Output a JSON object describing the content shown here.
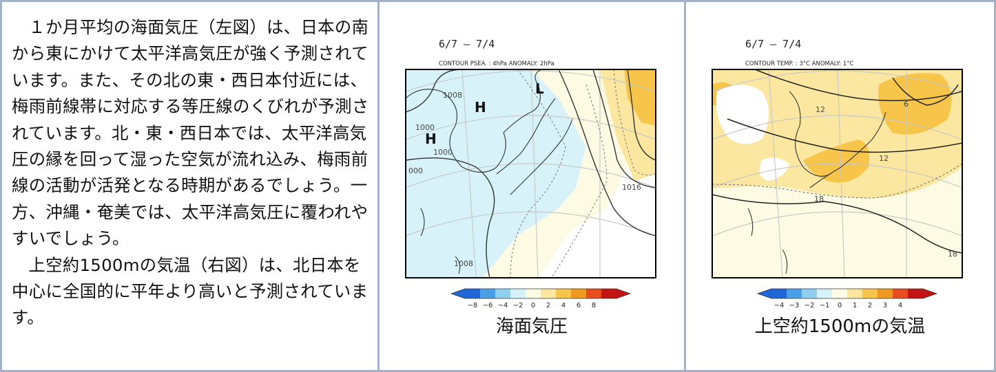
{
  "text": {
    "paragraphs": [
      "１か月平均の海面気圧（左図）は、日本の南から東にかけて太平洋高気圧が強く予測されています。また、その北の東・西日本付近には、梅雨前線帯に対応する等圧線のくびれが予測されています。北・東・西日本では、太平洋高気圧の縁を回って湿った空気が流れ込み、梅雨前線の活動が活発となる時期があるでしょう。一方、沖縄・奄美では、太平洋高気圧に覆われやすいでしょう。",
      "上空約1500mの気温（右図）は、北日本を中心に全国的に平年より高いと予測されています。"
    ]
  },
  "map_left": {
    "period": "6/7 – 7/4",
    "contour_label": "CONTOUR PSEA. :  4hPa     ANOMALY:  2hPa",
    "labels": {
      "h1": "H",
      "h2": "H",
      "l1": "L",
      "c1008a": "1008",
      "c1000a": "1000",
      "c1000b": "1000",
      "c000": "000",
      "c1016": "1016",
      "c1008b": "1008"
    },
    "colorbar_ticks": [
      "−8",
      "−6",
      "−4",
      "−2",
      "0",
      "2",
      "4",
      "6",
      "8"
    ],
    "caption": "海面気圧",
    "colors": {
      "neg4": "#1f67d6",
      "neg3": "#4aa0e8",
      "neg2": "#8fd0f0",
      "neg1": "#d8f2fa",
      "pos1": "#fdfbe4",
      "pos2": "#fbe7a0",
      "pos3": "#f7c54a",
      "pos4": "#ef9a1f",
      "pos5": "#e84c1f",
      "pos6": "#c21414"
    }
  },
  "map_right": {
    "period": "6/7 – 7/4",
    "contour_label": "CONTOUR TEMP. :  3°C     ANOMALY:  1°C",
    "labels": {
      "c6": "6",
      "c12a": "12",
      "c12b": "12",
      "c18a": "18",
      "c18b": "18"
    },
    "colorbar_ticks": [
      "−4",
      "−3",
      "−2",
      "−1",
      "0",
      "1",
      "2",
      "3",
      "4"
    ],
    "caption": "上空約1500mの気温"
  }
}
